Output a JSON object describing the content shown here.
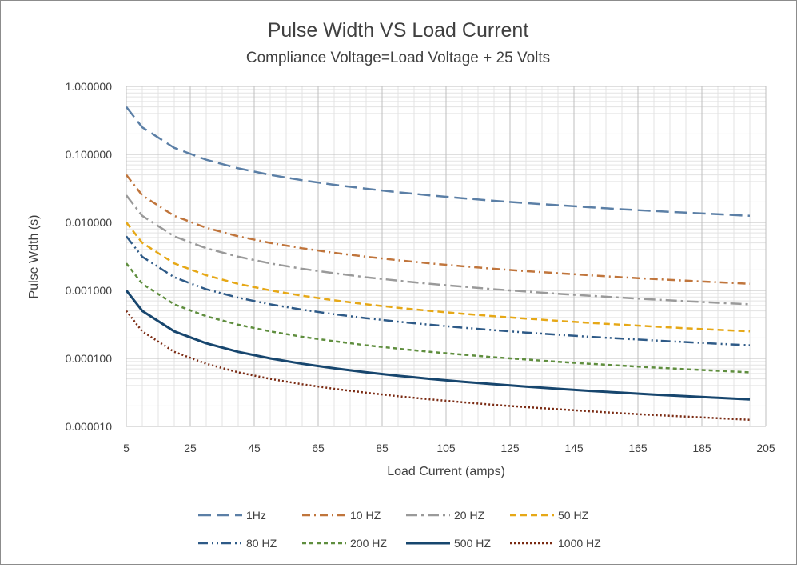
{
  "chart_data": {
    "type": "line",
    "title": "Pulse Width VS Load Current",
    "subtitle": "Compliance Voltage=Load Voltage + 25 Volts",
    "xlabel": "Load Current (amps)",
    "ylabel": "Pulse Wdth (s)",
    "xlim": [
      5,
      205
    ],
    "ylim": [
      1e-05,
      1
    ],
    "yscale": "log",
    "grid": true,
    "legend_position": "bottom",
    "x_ticks": [
      5,
      25,
      45,
      65,
      85,
      105,
      125,
      145,
      165,
      185,
      205
    ],
    "x_tick_labels": [
      "5",
      "25",
      "45",
      "65",
      "85",
      "105",
      "125",
      "145",
      "165",
      "185",
      "205"
    ],
    "y_ticks": [
      1e-05,
      0.0001,
      0.001,
      0.01,
      0.1,
      1
    ],
    "y_tick_labels": [
      "0.000010",
      "0.000100",
      "0.001000",
      "0.010000",
      "0.100000",
      "1.000000"
    ],
    "x": [
      5,
      10,
      20,
      30,
      40,
      50,
      60,
      70,
      80,
      90,
      100,
      110,
      120,
      130,
      140,
      150,
      160,
      170,
      180,
      190,
      200
    ],
    "series": [
      {
        "name": "1Hz",
        "color": "#5b7fa6",
        "dash": "16,7",
        "width": 2.5,
        "values": [
          0.5,
          0.25,
          0.125,
          0.0833,
          0.0625,
          0.05,
          0.0417,
          0.0357,
          0.0313,
          0.0278,
          0.025,
          0.0227,
          0.0208,
          0.0192,
          0.0179,
          0.0167,
          0.0156,
          0.0147,
          0.0139,
          0.0132,
          0.0125
        ]
      },
      {
        "name": "10 HZ",
        "color": "#c0753c",
        "dash": "10,5,2,5",
        "width": 2.5,
        "values": [
          0.05,
          0.025,
          0.0125,
          0.00833,
          0.00625,
          0.005,
          0.00417,
          0.00357,
          0.00313,
          0.00278,
          0.0025,
          0.00227,
          0.00208,
          0.00192,
          0.00179,
          0.00167,
          0.00156,
          0.00147,
          0.00139,
          0.00132,
          0.00125
        ]
      },
      {
        "name": "20 HZ",
        "color": "#9a9a9a",
        "dash": "14,5,3,5",
        "width": 2.5,
        "values": [
          0.025,
          0.0125,
          0.00625,
          0.00417,
          0.00313,
          0.0025,
          0.00208,
          0.00179,
          0.00156,
          0.00139,
          0.00125,
          0.00114,
          0.00104,
          0.000962,
          0.000893,
          0.000833,
          0.000781,
          0.000735,
          0.000694,
          0.000658,
          0.000625
        ]
      },
      {
        "name": "50 HZ",
        "color": "#e6a817",
        "dash": "8,5",
        "width": 2.5,
        "values": [
          0.01,
          0.005,
          0.0025,
          0.00167,
          0.00125,
          0.001,
          0.000833,
          0.000714,
          0.000625,
          0.000556,
          0.0005,
          0.000455,
          0.000417,
          0.000385,
          0.000357,
          0.000333,
          0.000313,
          0.000294,
          0.000278,
          0.000263,
          0.00025
        ]
      },
      {
        "name": "80 HZ",
        "color": "#2e5a87",
        "dash": "12,5,2,4,2,4",
        "width": 2.5,
        "values": [
          0.00625,
          0.00313,
          0.00156,
          0.00104,
          0.000781,
          0.000625,
          0.000521,
          0.000446,
          0.000391,
          0.000347,
          0.000313,
          0.000284,
          0.00026,
          0.00024,
          0.000223,
          0.000208,
          0.000195,
          0.000184,
          0.000174,
          0.000164,
          0.000156
        ]
      },
      {
        "name": "200 HZ",
        "color": "#5f8e3e",
        "dash": "5,4",
        "width": 2.5,
        "values": [
          0.0025,
          0.00125,
          0.000625,
          0.000417,
          0.000313,
          0.00025,
          0.000208,
          0.000179,
          0.000156,
          0.000139,
          0.000125,
          0.000114,
          0.000104,
          9.62e-05,
          8.93e-05,
          8.33e-05,
          7.81e-05,
          7.35e-05,
          6.94e-05,
          6.58e-05,
          6.25e-05
        ]
      },
      {
        "name": "500 HZ",
        "color": "#17466e",
        "dash": "",
        "width": 3,
        "values": [
          0.001,
          0.0005,
          0.00025,
          0.000167,
          0.000125,
          0.0001,
          8.33e-05,
          7.14e-05,
          6.25e-05,
          5.56e-05,
          5e-05,
          4.55e-05,
          4.17e-05,
          3.85e-05,
          3.57e-05,
          3.33e-05,
          3.13e-05,
          2.94e-05,
          2.78e-05,
          2.63e-05,
          2.5e-05
        ]
      },
      {
        "name": "1000 HZ",
        "color": "#7a2a12",
        "dash": "2,3",
        "width": 2.5,
        "values": [
          0.0005,
          0.00025,
          0.000125,
          8.33e-05,
          6.25e-05,
          5e-05,
          4.17e-05,
          3.57e-05,
          3.13e-05,
          2.78e-05,
          2.5e-05,
          2.27e-05,
          2.08e-05,
          1.92e-05,
          1.79e-05,
          1.67e-05,
          1.56e-05,
          1.47e-05,
          1.39e-05,
          1.32e-05,
          1.25e-05
        ]
      }
    ]
  }
}
